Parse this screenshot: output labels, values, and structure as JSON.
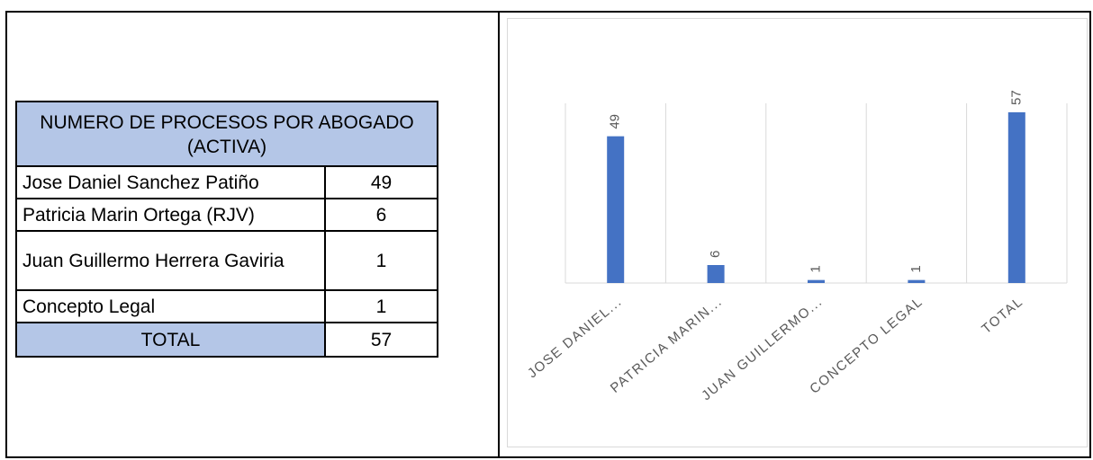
{
  "table": {
    "header": "NUMERO DE PROCESOS POR ABOGADO (ACTIVA)",
    "rows": [
      {
        "name": "Jose Daniel Sanchez Patiño",
        "value": "49"
      },
      {
        "name": "Patricia Marin Ortega (RJV)",
        "value": "6"
      },
      {
        "name": "Juan Guillermo Herrera Gaviria",
        "value": "1"
      },
      {
        "name": "Concepto Legal",
        "value": "1"
      }
    ],
    "total_label": "TOTAL",
    "total_value": "57"
  },
  "colors": {
    "header_fill": "#b4c6e7",
    "bar": "#4472c4",
    "gridline": "#d9d9d9",
    "label": "#595959"
  },
  "chart_data": {
    "type": "bar",
    "categories": [
      "JOSE DANIEL...",
      "PATRICIA MARIN...",
      "JUAN GUILLERMO...",
      "CONCEPTO LEGAL",
      "TOTAL"
    ],
    "values": [
      49,
      6,
      1,
      1,
      57
    ],
    "data_labels": [
      "49",
      "6",
      "1",
      "1",
      "57"
    ],
    "ylim": [
      0,
      57
    ],
    "grid": "vertical category separators",
    "legend": "none",
    "title": "",
    "xlabel": "",
    "ylabel": ""
  }
}
